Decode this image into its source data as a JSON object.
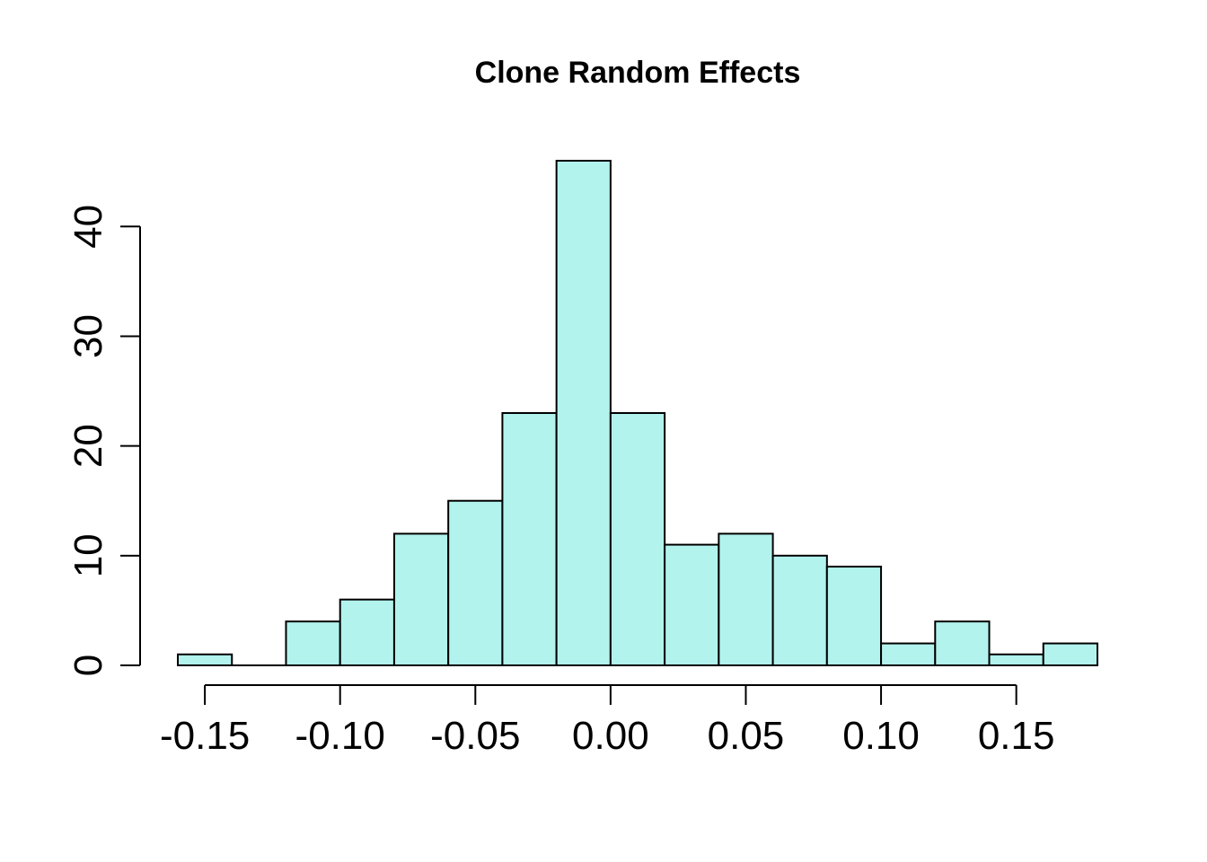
{
  "chart_data": {
    "type": "bar",
    "title": "Clone Random Effects",
    "xlabel": "",
    "ylabel": "",
    "bin_edges": [
      -0.16,
      -0.14,
      -0.12,
      -0.1,
      -0.08,
      -0.06,
      -0.04,
      -0.02,
      0.0,
      0.02,
      0.04,
      0.06,
      0.08,
      0.1,
      0.12,
      0.14,
      0.16,
      0.18
    ],
    "values": [
      1,
      0,
      4,
      6,
      12,
      15,
      23,
      46,
      23,
      11,
      12,
      10,
      9,
      2,
      4,
      1,
      2
    ],
    "xlim": [
      -0.16,
      0.18
    ],
    "ylim": [
      0,
      46
    ],
    "x_ticks": [
      -0.15,
      -0.1,
      -0.05,
      0.0,
      0.05,
      0.1,
      0.15
    ],
    "x_tick_labels": [
      "-0.15",
      "-0.10",
      "-0.05",
      "0.00",
      "0.05",
      "0.10",
      "0.15"
    ],
    "y_ticks": [
      0,
      10,
      20,
      30,
      40
    ],
    "y_tick_labels": [
      "0",
      "10",
      "20",
      "30",
      "40"
    ],
    "bar_color": "#b2f3ee",
    "grid": false,
    "legend": "none"
  }
}
